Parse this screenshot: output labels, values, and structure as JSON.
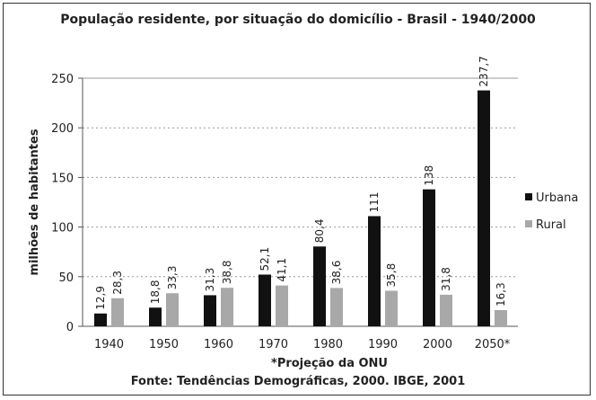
{
  "chart_data": {
    "type": "bar",
    "title": "População residente, por situação do domicílio - Brasil - 1940/2000",
    "ylabel": "milhões de habitantes",
    "xlabel": "",
    "categories": [
      "1940",
      "1950",
      "1960",
      "1970",
      "1980",
      "1990",
      "2000",
      "2050*"
    ],
    "series": [
      {
        "name": "Urbana",
        "values": [
          12.9,
          18.8,
          31.3,
          52.1,
          80.4,
          111,
          138,
          237.7
        ],
        "labels": [
          "12,9",
          "18,8",
          "31,3",
          "52,1",
          "80,4",
          "111",
          "138",
          "237,7"
        ],
        "color": "#111111"
      },
      {
        "name": "Rural",
        "values": [
          28.3,
          33.3,
          38.8,
          41.1,
          38.6,
          35.8,
          31.8,
          16.3
        ],
        "labels": [
          "28,3",
          "33,3",
          "38,8",
          "41,1",
          "38,6",
          "35,8",
          "31,8",
          "16,3"
        ],
        "color": "#a8a8a8"
      }
    ],
    "ylim": [
      0,
      250
    ],
    "yticks": [
      "0",
      "50",
      "100",
      "150",
      "200",
      "250"
    ],
    "grid": true,
    "legend": "right",
    "notes": [
      "*Projeção da ONU",
      "Fonte: Tendências Demográficas, 2000. IBGE, 2001"
    ]
  }
}
